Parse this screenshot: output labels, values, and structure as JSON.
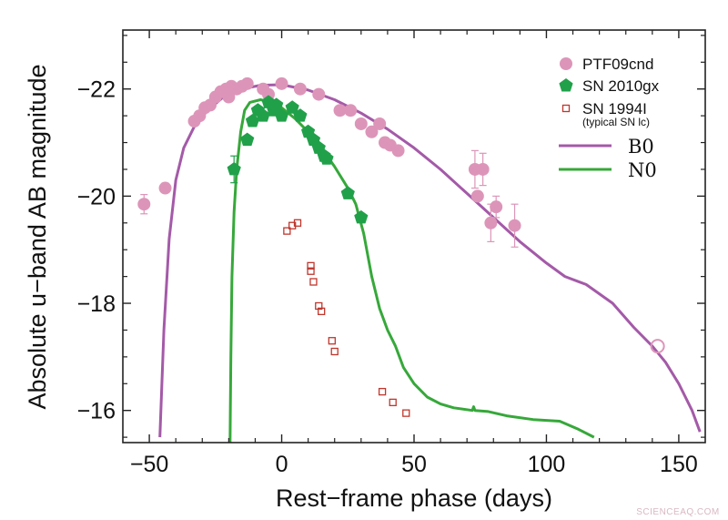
{
  "chart_data": {
    "type": "scatter",
    "xlabel": "Rest−frame phase (days)",
    "ylabel": "Absolute u−band AB magnitude",
    "xlim": [
      -60,
      160
    ],
    "ylim": [
      -15.4,
      -23.1
    ],
    "y_inverted": true,
    "x_ticks": [
      -50,
      0,
      50,
      100,
      150
    ],
    "x_tick_labels": [
      "−50",
      "0",
      "50",
      "100",
      "150"
    ],
    "y_ticks": [
      -16,
      -18,
      -20,
      -22
    ],
    "y_tick_labels": [
      "−16",
      "−18",
      "−20",
      "−22"
    ],
    "grid": false,
    "legend_position": "top-right",
    "colors": {
      "ptf": "#dc95b8",
      "sn2010gx": "#21a04a",
      "sn1994i": "#c0362c",
      "b0": "#a45aa8",
      "n0": "#36a83a"
    },
    "series": [
      {
        "name": "PTF09cnd",
        "kind": "filled-circle",
        "color_key": "ptf",
        "points": [
          [
            -52,
            -19.85,
            0.18
          ],
          [
            -44,
            -20.15,
            0
          ],
          [
            -33,
            -21.4,
            0
          ],
          [
            -31,
            -21.5,
            0
          ],
          [
            -29,
            -21.65,
            0
          ],
          [
            -27,
            -21.7,
            0
          ],
          [
            -25,
            -21.85,
            0
          ],
          [
            -23,
            -21.95,
            0
          ],
          [
            -21,
            -22.0,
            0
          ],
          [
            -20,
            -21.85,
            0
          ],
          [
            -19,
            -22.05,
            0
          ],
          [
            -17,
            -22.0,
            0
          ],
          [
            -15,
            -22.05,
            0
          ],
          [
            -13,
            -22.1,
            0
          ],
          [
            -7,
            -22.0,
            0
          ],
          [
            -5,
            -21.9,
            0
          ],
          [
            0,
            -22.1,
            0
          ],
          [
            7,
            -22.0,
            0
          ],
          [
            14,
            -21.9,
            0
          ],
          [
            22,
            -21.6,
            0
          ],
          [
            26,
            -21.6,
            0
          ],
          [
            30,
            -21.35,
            0
          ],
          [
            34,
            -21.2,
            0
          ],
          [
            37,
            -21.35,
            0
          ],
          [
            39,
            -21.0,
            0
          ],
          [
            41,
            -20.95,
            0
          ],
          [
            44,
            -20.85,
            0
          ],
          [
            73,
            -20.5,
            0.35
          ],
          [
            74,
            -20.0,
            0
          ],
          [
            76,
            -20.5,
            0.3
          ],
          [
            79,
            -19.5,
            0.35
          ],
          [
            81,
            -19.8,
            0.2
          ],
          [
            88,
            -19.45,
            0.4
          ]
        ]
      },
      {
        "name": "PTF09cnd",
        "kind": "open-circle",
        "color_key": "ptf",
        "points": [
          [
            142,
            -17.2,
            0
          ]
        ]
      },
      {
        "name": "SN 2010gx",
        "kind": "pentagon",
        "color_key": "sn2010gx",
        "points": [
          [
            -18,
            -20.5,
            0.25
          ],
          [
            -13,
            -21.05,
            0
          ],
          [
            -11,
            -21.4,
            0
          ],
          [
            -9,
            -21.6,
            0
          ],
          [
            -7,
            -21.5,
            0
          ],
          [
            -5,
            -21.75,
            0
          ],
          [
            -3,
            -21.6,
            0
          ],
          [
            -2,
            -21.7,
            0
          ],
          [
            0,
            -21.5,
            0
          ],
          [
            4,
            -21.65,
            0
          ],
          [
            7,
            -21.5,
            0
          ],
          [
            10,
            -21.2,
            0
          ],
          [
            12,
            -21.05,
            0
          ],
          [
            14,
            -20.9,
            0
          ],
          [
            16,
            -20.75,
            0
          ],
          [
            17,
            -20.7,
            0
          ],
          [
            25,
            -20.05,
            0
          ],
          [
            30,
            -19.6,
            0
          ]
        ]
      },
      {
        "name": "SN 1994I",
        "kind": "open-square",
        "color_key": "sn1994i",
        "points": [
          [
            2,
            -19.35,
            0
          ],
          [
            4,
            -19.45,
            0
          ],
          [
            6,
            -19.5,
            0
          ],
          [
            11,
            -18.7,
            0
          ],
          [
            11,
            -18.6,
            0
          ],
          [
            12,
            -18.4,
            0
          ],
          [
            14,
            -17.95,
            0
          ],
          [
            15,
            -17.85,
            0
          ],
          [
            19,
            -17.3,
            0
          ],
          [
            20,
            -17.1,
            0
          ],
          [
            38,
            -16.35,
            0
          ],
          [
            42,
            -16.15,
            0
          ],
          [
            47,
            -15.95,
            0
          ]
        ]
      },
      {
        "name": "B0",
        "kind": "line",
        "color_key": "b0",
        "points": [
          [
            -46,
            -15.5
          ],
          [
            -44.5,
            -17.5
          ],
          [
            -42.5,
            -19.2
          ],
          [
            -40,
            -20.3
          ],
          [
            -37,
            -20.9
          ],
          [
            -33,
            -21.3
          ],
          [
            -28,
            -21.6
          ],
          [
            -22,
            -21.85
          ],
          [
            -15,
            -22.0
          ],
          [
            -8,
            -22.07
          ],
          [
            0,
            -22.08
          ],
          [
            10,
            -21.98
          ],
          [
            20,
            -21.8
          ],
          [
            30,
            -21.55
          ],
          [
            40,
            -21.25
          ],
          [
            50,
            -20.9
          ],
          [
            60,
            -20.5
          ],
          [
            70,
            -20.05
          ],
          [
            80,
            -19.6
          ],
          [
            90,
            -19.15
          ],
          [
            100,
            -18.75
          ],
          [
            107,
            -18.5
          ],
          [
            115,
            -18.35
          ],
          [
            125,
            -18.0
          ],
          [
            133,
            -17.55
          ],
          [
            140,
            -17.2
          ],
          [
            145,
            -16.9
          ],
          [
            150,
            -16.5
          ],
          [
            155,
            -16.0
          ],
          [
            158,
            -15.6
          ]
        ]
      },
      {
        "name": "N0",
        "kind": "line",
        "color_key": "n0",
        "points": [
          [
            -19.5,
            -15.4
          ],
          [
            -19.2,
            -17.0
          ],
          [
            -18.8,
            -18.5
          ],
          [
            -18,
            -19.7
          ],
          [
            -17,
            -20.5
          ],
          [
            -15.5,
            -21.2
          ],
          [
            -14,
            -21.6
          ],
          [
            -12,
            -21.75
          ],
          [
            -8,
            -21.8
          ],
          [
            -4,
            -21.75
          ],
          [
            0,
            -21.65
          ],
          [
            5,
            -21.45
          ],
          [
            10,
            -21.2
          ],
          [
            15,
            -20.9
          ],
          [
            20,
            -20.55
          ],
          [
            25,
            -20.15
          ],
          [
            28,
            -19.85
          ],
          [
            31,
            -19.3
          ],
          [
            34,
            -18.5
          ],
          [
            37,
            -17.9
          ],
          [
            40,
            -17.5
          ],
          [
            43,
            -17.2
          ],
          [
            46,
            -16.8
          ],
          [
            50,
            -16.5
          ],
          [
            55,
            -16.25
          ],
          [
            60,
            -16.12
          ],
          [
            65,
            -16.05
          ],
          [
            72,
            -16.0
          ],
          [
            72.5,
            -16.07
          ],
          [
            73,
            -16.0
          ],
          [
            78,
            -15.98
          ],
          [
            85,
            -15.9
          ],
          [
            95,
            -15.83
          ],
          [
            105,
            -15.8
          ],
          [
            112,
            -15.65
          ],
          [
            118,
            -15.5
          ]
        ]
      }
    ],
    "legend": [
      {
        "label": "PTF09cnd",
        "kind": "filled-circle",
        "color_key": "ptf"
      },
      {
        "label": "SN 2010gx",
        "kind": "pentagon",
        "color_key": "sn2010gx"
      },
      {
        "label": "SN 1994I",
        "kind": "open-square",
        "color_key": "sn1994i",
        "note": "(typical SN lc)"
      },
      {
        "label": "B0",
        "kind": "line",
        "color_key": "b0"
      },
      {
        "label": "N0",
        "kind": "line",
        "color_key": "n0"
      }
    ]
  },
  "watermark": "SCIENCEAQ.COM"
}
